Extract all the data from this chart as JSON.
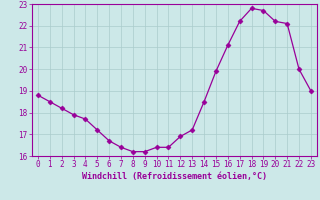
{
  "x": [
    0,
    1,
    2,
    3,
    4,
    5,
    6,
    7,
    8,
    9,
    10,
    11,
    12,
    13,
    14,
    15,
    16,
    17,
    18,
    19,
    20,
    21,
    22,
    23
  ],
  "y": [
    18.8,
    18.5,
    18.2,
    17.9,
    17.7,
    17.2,
    16.7,
    16.4,
    16.2,
    16.2,
    16.4,
    16.4,
    16.9,
    17.2,
    18.5,
    19.9,
    21.1,
    22.2,
    22.8,
    22.7,
    22.2,
    22.1,
    20.0,
    19.0
  ],
  "line_color": "#990099",
  "marker": "D",
  "marker_size": 2.5,
  "bg_color": "#cce8e8",
  "grid_color": "#aacccc",
  "xlabel": "Windchill (Refroidissement éolien,°C)",
  "xlabel_color": "#990099",
  "tick_color": "#990099",
  "spine_color": "#990099",
  "ylim": [
    16,
    23
  ],
  "yticks": [
    16,
    17,
    18,
    19,
    20,
    21,
    22,
    23
  ],
  "xlim": [
    -0.5,
    23.5
  ],
  "xticks": [
    0,
    1,
    2,
    3,
    4,
    5,
    6,
    7,
    8,
    9,
    10,
    11,
    12,
    13,
    14,
    15,
    16,
    17,
    18,
    19,
    20,
    21,
    22,
    23
  ]
}
